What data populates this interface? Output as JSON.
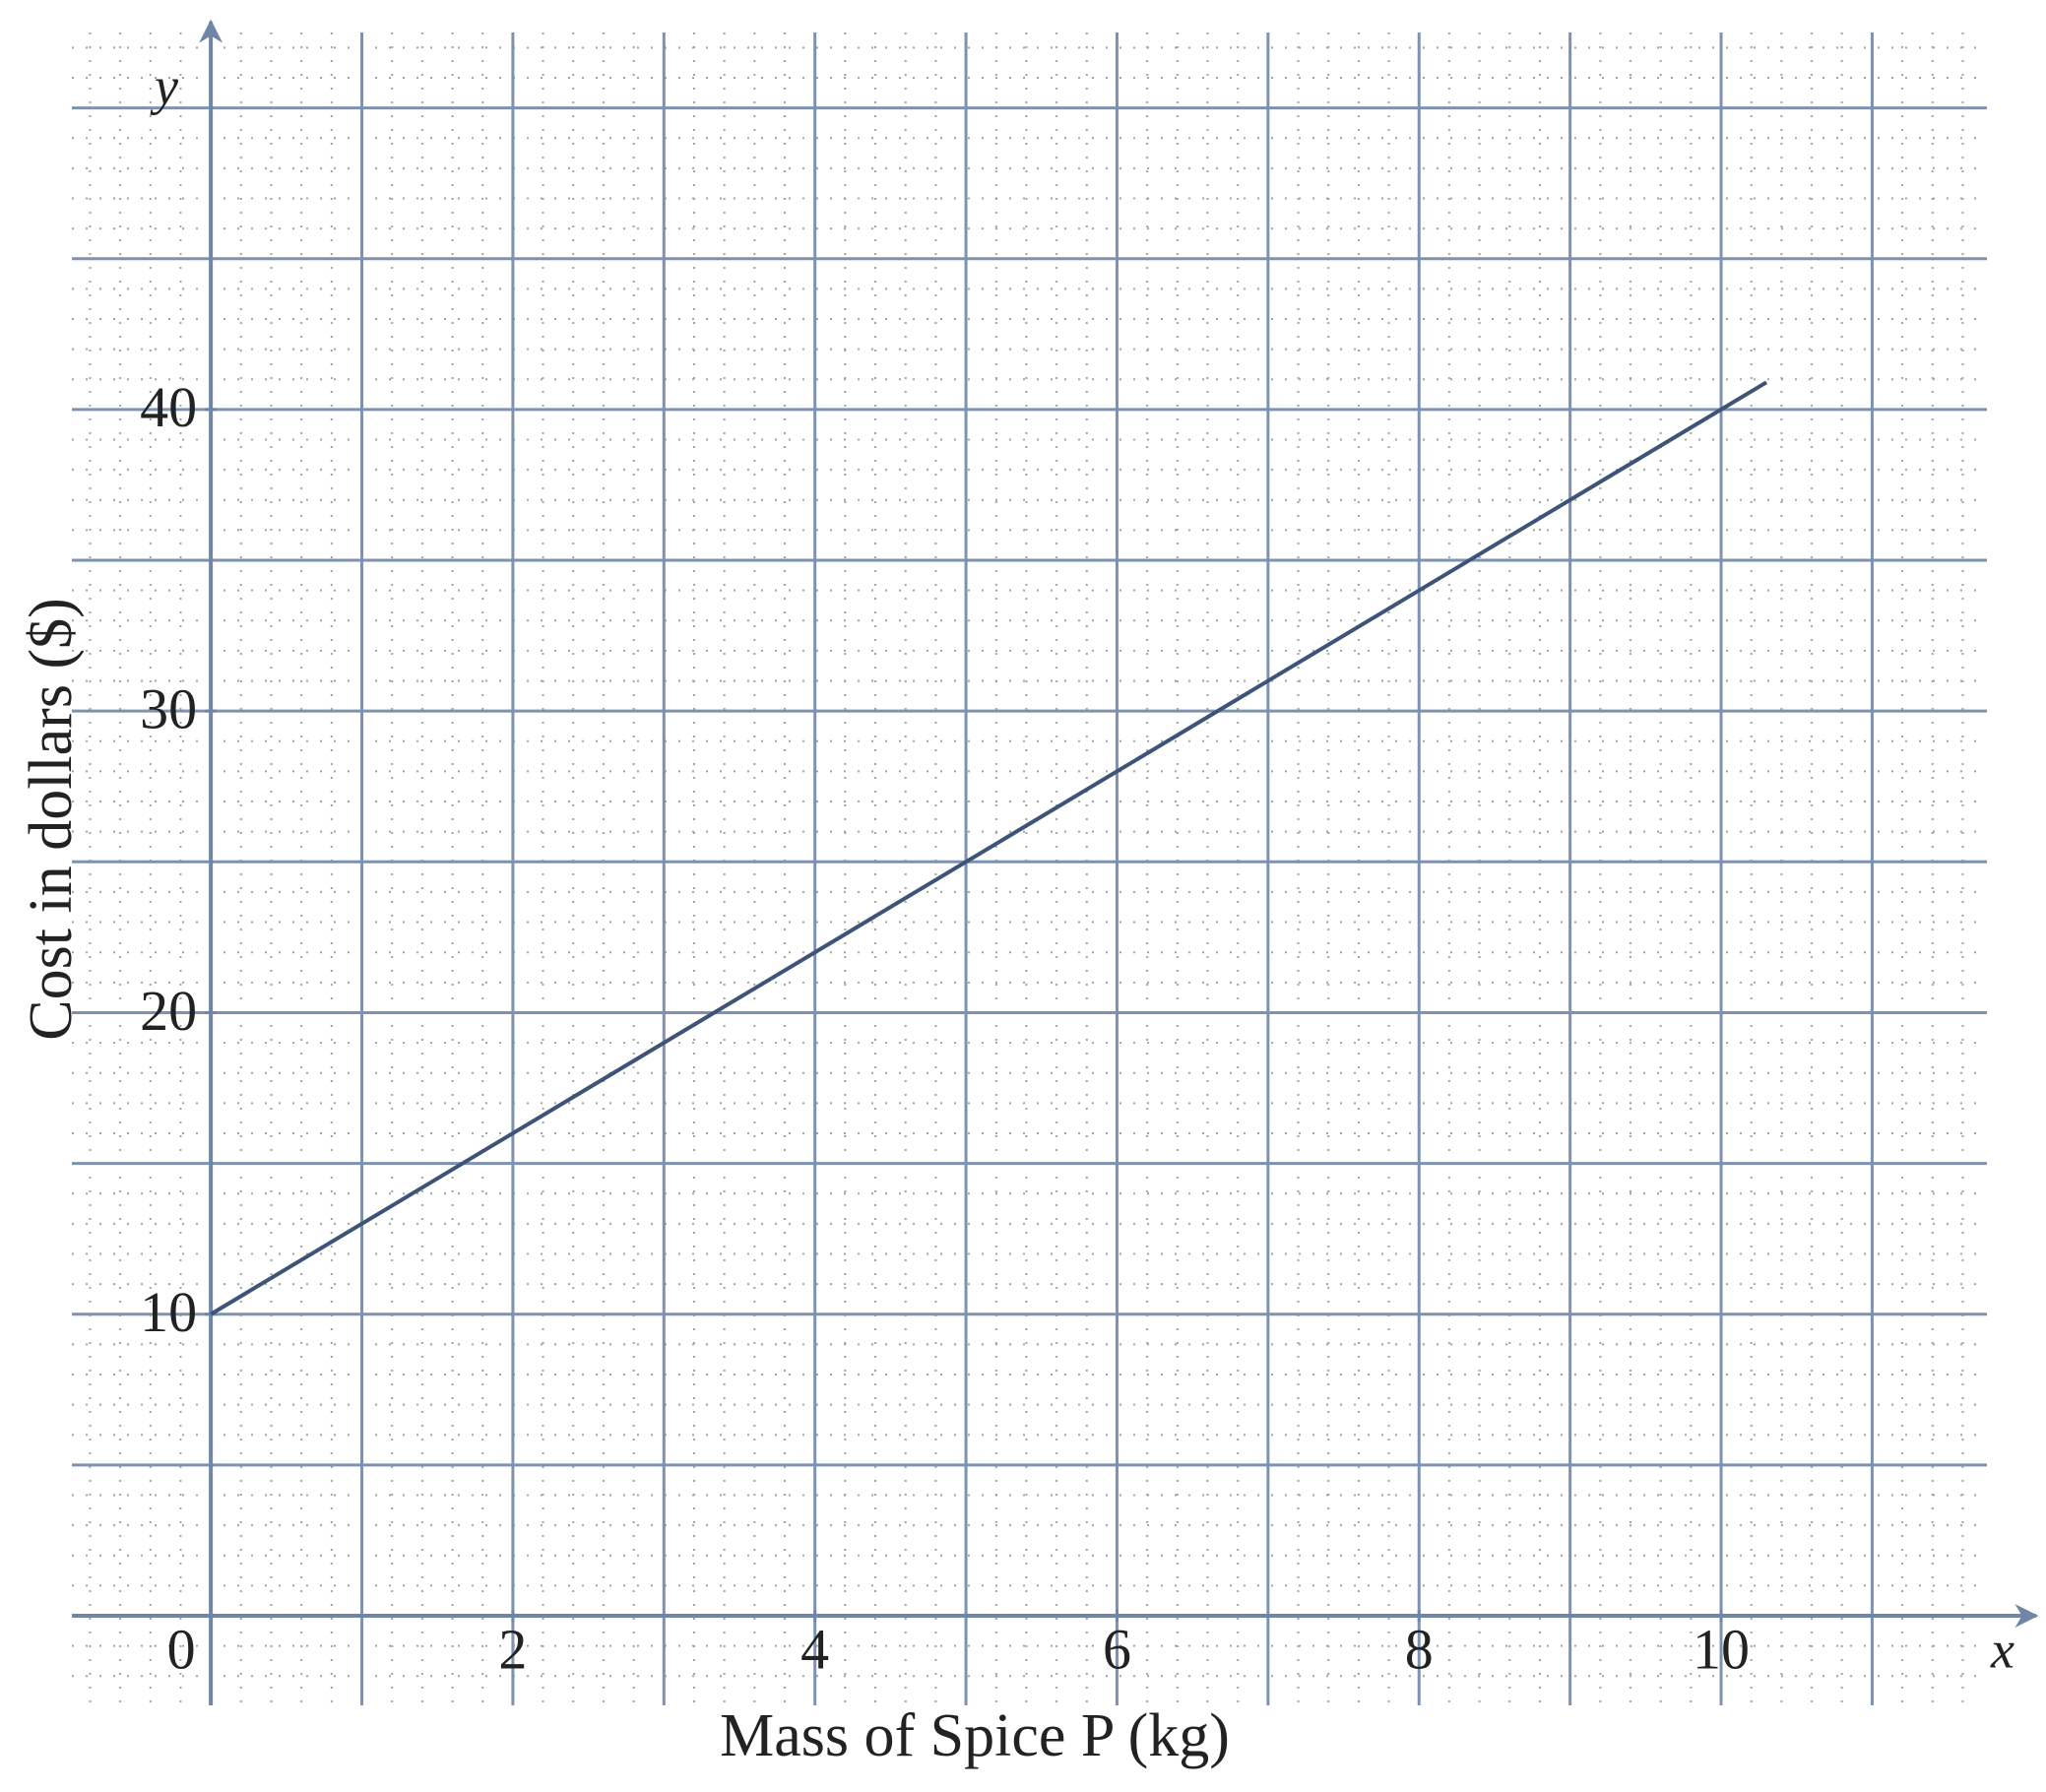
{
  "chart_data": {
    "type": "line",
    "x_label": "Mass of Spice P (kg)",
    "y_label": "Cost in dollars ($)",
    "x_axis_name": "x",
    "y_axis_name": "y",
    "x": [
      0,
      10.3
    ],
    "series": [
      {
        "color": "#3d5478",
        "values": [
          10,
          40.9
        ]
      }
    ],
    "xlim": [
      -0.92,
      11.76
    ],
    "ylim": [
      -2.97,
      52.5
    ],
    "xticks": [
      0,
      2,
      4,
      6,
      8,
      10
    ],
    "yticks": [
      10,
      20,
      30,
      40
    ],
    "grid": true
  }
}
